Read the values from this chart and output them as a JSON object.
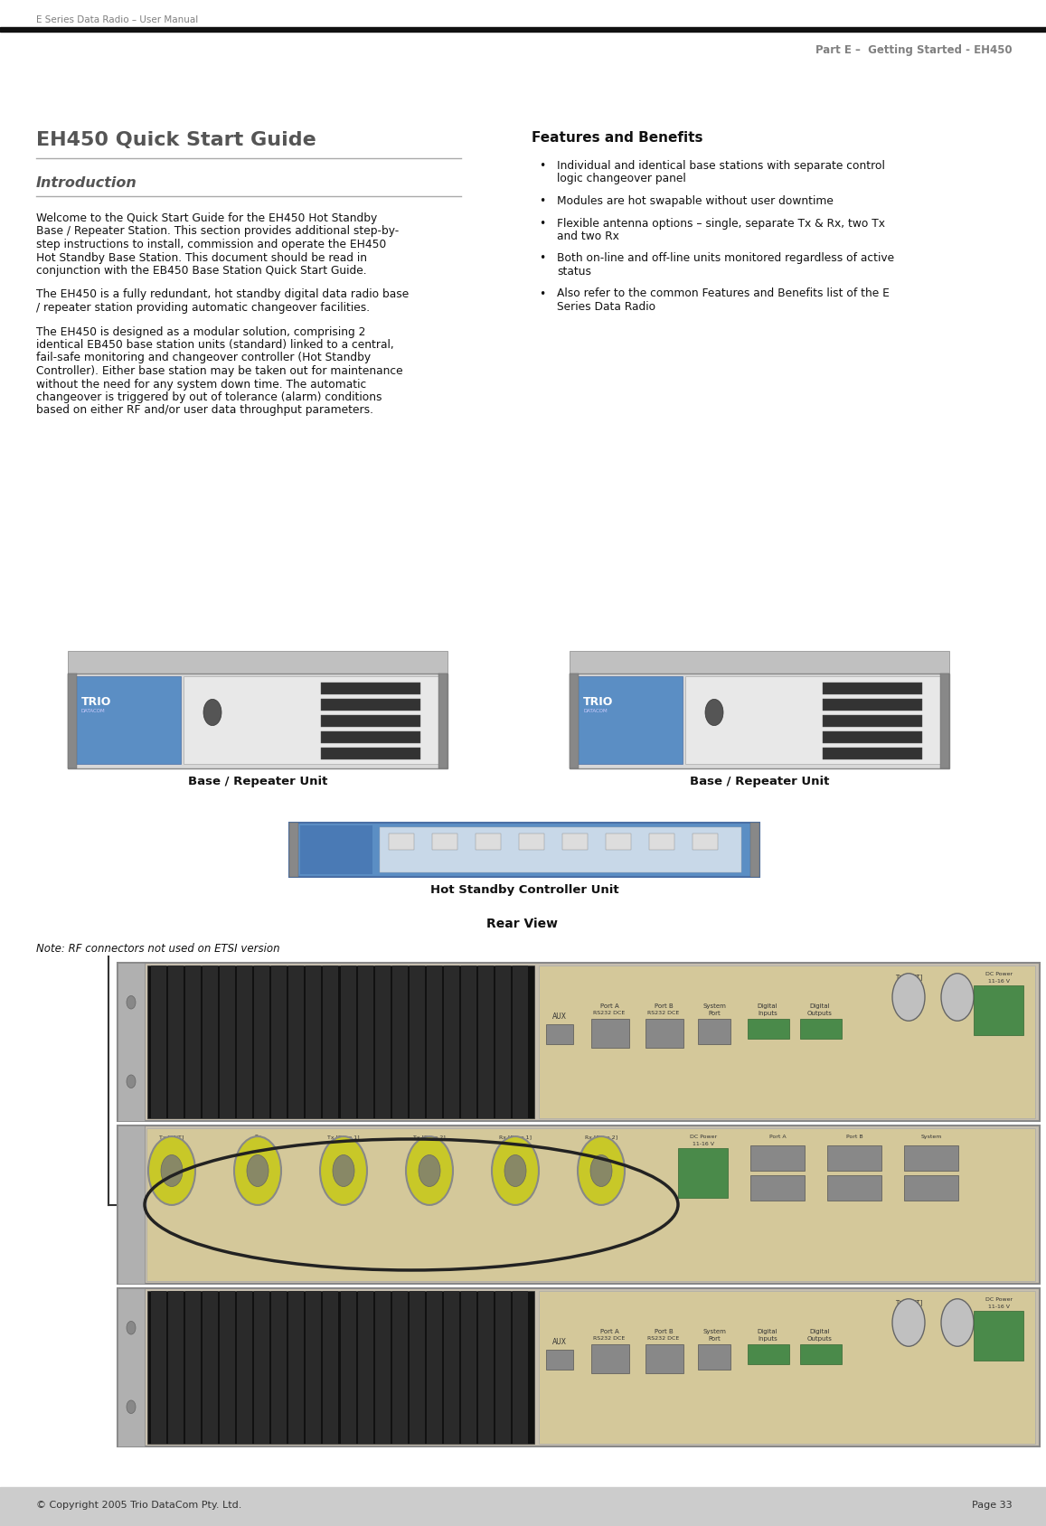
{
  "bg_color": "#ffffff",
  "header_text_left": "E Series Data Radio – User Manual",
  "header_text_right": "Part E –  Getting Started - EH450",
  "header_text_color": "#808080",
  "footer_text_left": "© Copyright 2005 Trio DataCom Pty. Ltd.",
  "footer_text_right": "Page 33",
  "title_main": "EH450 Quick Start Guide",
  "title_main_color": "#555555",
  "title_sub": "Introduction",
  "title_sub_color": "#555555",
  "features_title": "Features and Benefits",
  "features_title_color": "#111111",
  "underline_color": "#aaaaaa",
  "body_text_color": "#111111",
  "bullet_color": "#111111",
  "label_base_repeater_left": "Base / Repeater Unit",
  "label_base_repeater_right": "Base / Repeater Unit",
  "label_hot_standby": "Hot Standby Controller Unit",
  "label_rear_view": "Rear View",
  "label_note": "Note: RF connectors not used on ETSI version",
  "text1_lines": [
    "Welcome to the Quick Start Guide for the EH450 Hot Standby",
    "Base / Repeater Station. This section provides additional step-by-",
    "step instructions to install, commission and operate the EH450",
    "Hot Standby Base Station. This document should be read in",
    "conjunction with the EB450 Base Station Quick Start Guide."
  ],
  "text2_lines": [
    "The EH450 is a fully redundant, hot standby digital data radio base",
    "/ repeater station providing automatic changeover facilities."
  ],
  "text3_lines": [
    "The EH450 is designed as a modular solution, comprising 2",
    "identical EB450 base station units (standard) linked to a central,",
    "fail-safe monitoring and changeover controller (Hot Standby",
    "Controller). Either base station may be taken out for maintenance",
    "without the need for any system down time. The automatic",
    "changeover is triggered by out of tolerance (alarm) conditions",
    "based on either RF and/or user data throughput parameters."
  ],
  "bullet_lines": [
    [
      "Individual and identical base stations with separate control",
      "logic changeover panel"
    ],
    [
      "Modules are hot swapable without user downtime"
    ],
    [
      "Flexible antenna options – single, separate Tx & Rx, two Tx",
      "and two Rx"
    ],
    [
      "Both on-line and off-line units monitored regardless of active",
      "status"
    ],
    [
      "Also refer to the common Features and Benefits list of the E",
      "Series Data Radio"
    ]
  ]
}
